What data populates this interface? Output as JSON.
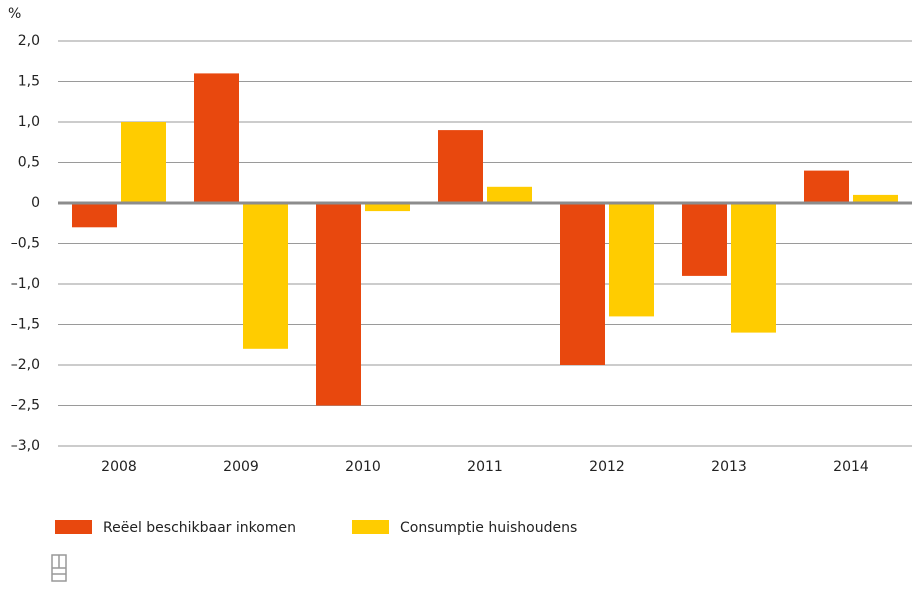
{
  "chart_data": {
    "type": "bar",
    "ylabel": "%",
    "categories": [
      "2008",
      "2009",
      "2010",
      "2011",
      "2012",
      "2013",
      "2014"
    ],
    "series": [
      {
        "name": "Reëel beschikbaar inkomen",
        "color": "#e8480e",
        "values": [
          -0.3,
          1.6,
          -2.5,
          0.9,
          -2.0,
          -0.9,
          0.4
        ]
      },
      {
        "name": "Consumptie huishoudens",
        "color": "#ffcc00",
        "values": [
          1.0,
          -1.8,
          -0.1,
          0.2,
          -1.4,
          -1.6,
          0.1
        ]
      }
    ],
    "ylim": [
      -3.0,
      2.0
    ],
    "yticks": [
      {
        "value": -3.0,
        "label": "–3,0"
      },
      {
        "value": -2.5,
        "label": "–2,5"
      },
      {
        "value": -2.0,
        "label": "–2,0"
      },
      {
        "value": -1.5,
        "label": "–1,5"
      },
      {
        "value": -1.0,
        "label": "–1,0"
      },
      {
        "value": -0.5,
        "label": "–0,5"
      },
      0,
      {
        "value": 0.5,
        "label": "0,5"
      },
      {
        "value": 1.0,
        "label": "1,0"
      },
      {
        "value": 1.5,
        "label": "1,5"
      },
      {
        "value": 2.0,
        "label": "2,0"
      }
    ],
    "grid": true
  }
}
